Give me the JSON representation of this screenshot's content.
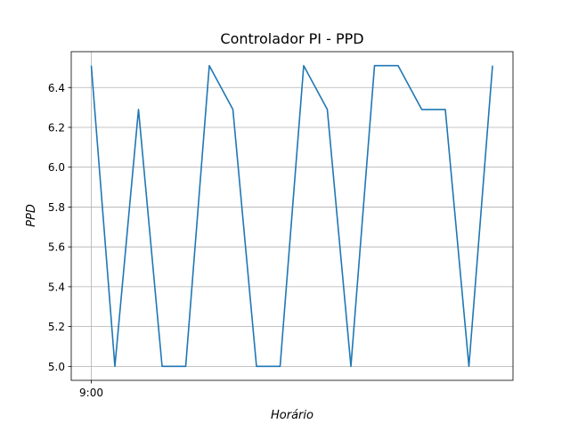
{
  "chart_data": {
    "type": "line",
    "title": "Controlador PI - PPD",
    "xlabel": "Horário",
    "ylabel": "PPD",
    "x_tick_labels": [
      "9:00"
    ],
    "y_ticks": [
      5.0,
      5.2,
      5.4,
      5.6,
      5.8,
      6.0,
      6.2,
      6.4
    ],
    "y_tick_labels": [
      "5.0",
      "5.2",
      "5.4",
      "5.6",
      "5.8",
      "6.0",
      "6.2",
      "6.4"
    ],
    "ylim": [
      4.93,
      6.58
    ],
    "grid": true,
    "series": [
      {
        "color": "#1f77b4",
        "values": [
          6.51,
          5.0,
          6.29,
          5.0,
          5.0,
          6.51,
          6.29,
          5.0,
          5.0,
          6.51,
          6.29,
          5.0,
          6.51,
          6.51,
          6.29,
          6.29,
          5.0,
          6.51
        ]
      }
    ]
  }
}
